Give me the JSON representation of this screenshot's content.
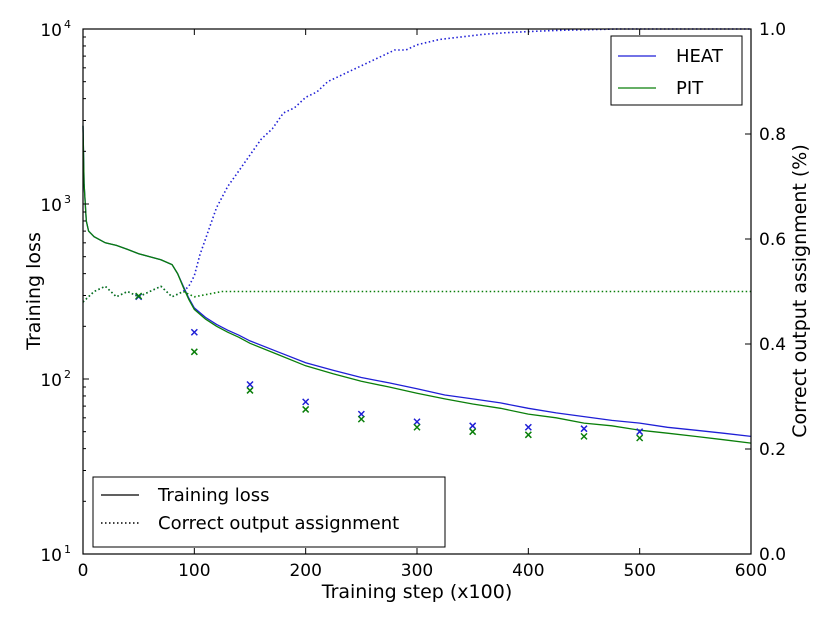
{
  "chart_data": {
    "type": "line",
    "xlabel": "Training step (x100)",
    "ylabel_left": "Training loss",
    "ylabel_right": "Correct output assignment (%)",
    "xlim": [
      0,
      600
    ],
    "ylim_left_log": [
      10,
      10000
    ],
    "ylim_right": [
      0.0,
      1.0
    ],
    "x_ticks": [
      "0",
      "100",
      "200",
      "300",
      "400",
      "500",
      "600"
    ],
    "y_left_ticks": [
      {
        "base": "10",
        "exp": "1"
      },
      {
        "base": "10",
        "exp": "2"
      },
      {
        "base": "10",
        "exp": "3"
      },
      {
        "base": "10",
        "exp": "4"
      }
    ],
    "y_right_ticks": [
      "0.0",
      "0.2",
      "0.4",
      "0.6",
      "0.8",
      "1.0"
    ],
    "colors": {
      "HEAT": "#1f1fd6",
      "PIT": "#0a7f0a"
    },
    "legend_models": [
      {
        "name": "HEAT",
        "color": "#1f1fd6"
      },
      {
        "name": "PIT",
        "color": "#0a7f0a"
      }
    ],
    "legend_styles": [
      {
        "label": "Training loss",
        "style": "solid"
      },
      {
        "label": "Correct output assignment",
        "style": "dotted"
      }
    ],
    "series": [
      {
        "name": "HEAT training loss",
        "axis": "left",
        "style": "solid",
        "color": "#1f1fd6",
        "x": [
          0,
          1,
          3,
          5,
          10,
          20,
          30,
          40,
          50,
          60,
          70,
          80,
          85,
          90,
          95,
          100,
          110,
          120,
          130,
          140,
          150,
          175,
          200,
          225,
          250,
          275,
          300,
          325,
          350,
          375,
          400,
          425,
          450,
          475,
          500,
          525,
          550,
          575,
          600
        ],
        "y": [
          2800,
          1300,
          800,
          700,
          650,
          600,
          580,
          550,
          520,
          500,
          480,
          450,
          400,
          340,
          290,
          255,
          225,
          205,
          190,
          178,
          165,
          143,
          124,
          112,
          102,
          95,
          88,
          81,
          77,
          73,
          68,
          64,
          61,
          58,
          56,
          53,
          51,
          49,
          47
        ]
      },
      {
        "name": "PIT training loss",
        "axis": "left",
        "style": "solid",
        "color": "#0a7f0a",
        "x": [
          0,
          1,
          3,
          5,
          10,
          20,
          30,
          40,
          50,
          60,
          70,
          80,
          85,
          90,
          95,
          100,
          110,
          120,
          130,
          140,
          150,
          175,
          200,
          225,
          250,
          275,
          300,
          325,
          350,
          375,
          400,
          425,
          450,
          475,
          500,
          525,
          550,
          575,
          600
        ],
        "y": [
          2800,
          1300,
          800,
          700,
          650,
          600,
          580,
          550,
          520,
          500,
          480,
          450,
          400,
          335,
          285,
          250,
          220,
          200,
          185,
          173,
          160,
          138,
          119,
          107,
          97,
          90,
          83,
          77,
          72,
          68,
          63,
          60,
          56,
          54,
          51,
          49,
          47,
          45,
          43
        ]
      },
      {
        "name": "HEAT correct output assignment",
        "axis": "right",
        "style": "dotted",
        "color": "#1f1fd6",
        "x": [
          0,
          10,
          20,
          30,
          40,
          50,
          60,
          70,
          80,
          90,
          95,
          100,
          105,
          110,
          115,
          120,
          125,
          130,
          140,
          150,
          160,
          170,
          180,
          190,
          200,
          210,
          220,
          230,
          240,
          250,
          260,
          270,
          280,
          290,
          300,
          320,
          340,
          360,
          380,
          400,
          420,
          440,
          460,
          480,
          500,
          550,
          600
        ],
        "y": [
          0.48,
          0.5,
          0.51,
          0.49,
          0.5,
          0.49,
          0.5,
          0.51,
          0.49,
          0.5,
          0.51,
          0.53,
          0.57,
          0.6,
          0.63,
          0.66,
          0.68,
          0.7,
          0.73,
          0.76,
          0.79,
          0.81,
          0.84,
          0.85,
          0.87,
          0.88,
          0.9,
          0.91,
          0.92,
          0.93,
          0.94,
          0.95,
          0.96,
          0.96,
          0.97,
          0.98,
          0.985,
          0.99,
          0.993,
          0.995,
          0.997,
          0.998,
          0.999,
          1.0,
          1.0,
          1.0,
          1.0
        ]
      },
      {
        "name": "PIT correct output assignment",
        "axis": "right",
        "style": "dotted",
        "color": "#0a7f0a",
        "x": [
          0,
          10,
          20,
          30,
          40,
          50,
          60,
          70,
          80,
          90,
          100,
          125,
          150,
          175,
          200,
          225,
          250,
          275,
          300,
          325,
          350,
          375,
          400,
          425,
          450,
          475,
          500,
          525,
          550,
          575,
          600
        ],
        "y": [
          0.48,
          0.5,
          0.51,
          0.49,
          0.5,
          0.49,
          0.5,
          0.51,
          0.49,
          0.5,
          0.49,
          0.5,
          0.5,
          0.5,
          0.5,
          0.5,
          0.5,
          0.5,
          0.5,
          0.5,
          0.5,
          0.5,
          0.5,
          0.5,
          0.5,
          0.5,
          0.5,
          0.5,
          0.5,
          0.5,
          0.5
        ]
      }
    ],
    "markers": [
      {
        "name": "HEAT",
        "color": "#1f1fd6",
        "x": [
          50,
          100,
          150,
          200,
          250,
          300,
          350,
          400,
          450,
          500
        ],
        "y": [
          295,
          185,
          93,
          74,
          63,
          57,
          54,
          53,
          52,
          50
        ]
      },
      {
        "name": "PIT",
        "color": "#0a7f0a",
        "x": [
          50,
          100,
          150,
          200,
          250,
          300,
          350,
          400,
          450,
          500
        ],
        "y": [
          298,
          143,
          86,
          67,
          59,
          53,
          50,
          48,
          47,
          46
        ]
      }
    ]
  }
}
